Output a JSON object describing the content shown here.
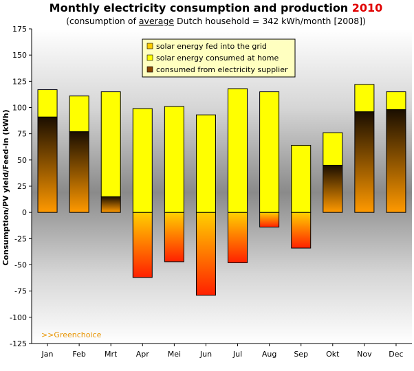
{
  "title": {
    "main": "Monthly electricity consumption and production",
    "year": "2010",
    "sub_prefix": "(consumption of ",
    "sub_underlined": "average",
    "sub_suffix": " Dutch household = 342 kWh/month [2008])"
  },
  "watermark": ">>Greenchoice",
  "colors": {
    "fed_into_grid": "#ffcc00",
    "consumed_at_home": "#ffff00",
    "from_supplier": "#8b4500",
    "negative_gradient_top": "#ffd000",
    "negative_gradient_bottom": "#ff2000",
    "supplier_gradient_top": "#1a0e00",
    "supplier_gradient_bottom": "#ff9900",
    "bar_stroke": "#000000"
  },
  "chart_data": {
    "type": "bar",
    "title": "Monthly electricity consumption and production 2010",
    "ylabel": "Consumption/PV yield/Feed-in (kWh)",
    "xlabel": "",
    "ylim": [
      -125,
      175
    ],
    "yticks": [
      175,
      150,
      125,
      100,
      75,
      50,
      25,
      0,
      -25,
      -50,
      -75,
      -100,
      -125
    ],
    "categories": [
      "Jan",
      "Feb",
      "Mrt",
      "Apr",
      "Mei",
      "Jun",
      "Jul",
      "Aug",
      "Sep",
      "Okt",
      "Nov",
      "Dec"
    ],
    "legend_position": "top-center",
    "series": [
      {
        "name": "solar energy fed into the grid",
        "values": [
          0,
          0,
          0,
          -62,
          -47,
          -79,
          -48,
          -14,
          -34,
          0,
          0,
          0
        ]
      },
      {
        "name": "solar energy consumed at home",
        "values": [
          26,
          34,
          100,
          99,
          101,
          93,
          118,
          115,
          64,
          31,
          26,
          17
        ]
      },
      {
        "name": "consumed from electricity supplier",
        "values": [
          91,
          77,
          15,
          0,
          0,
          0,
          0,
          0,
          0,
          45,
          96,
          98
        ]
      }
    ]
  }
}
